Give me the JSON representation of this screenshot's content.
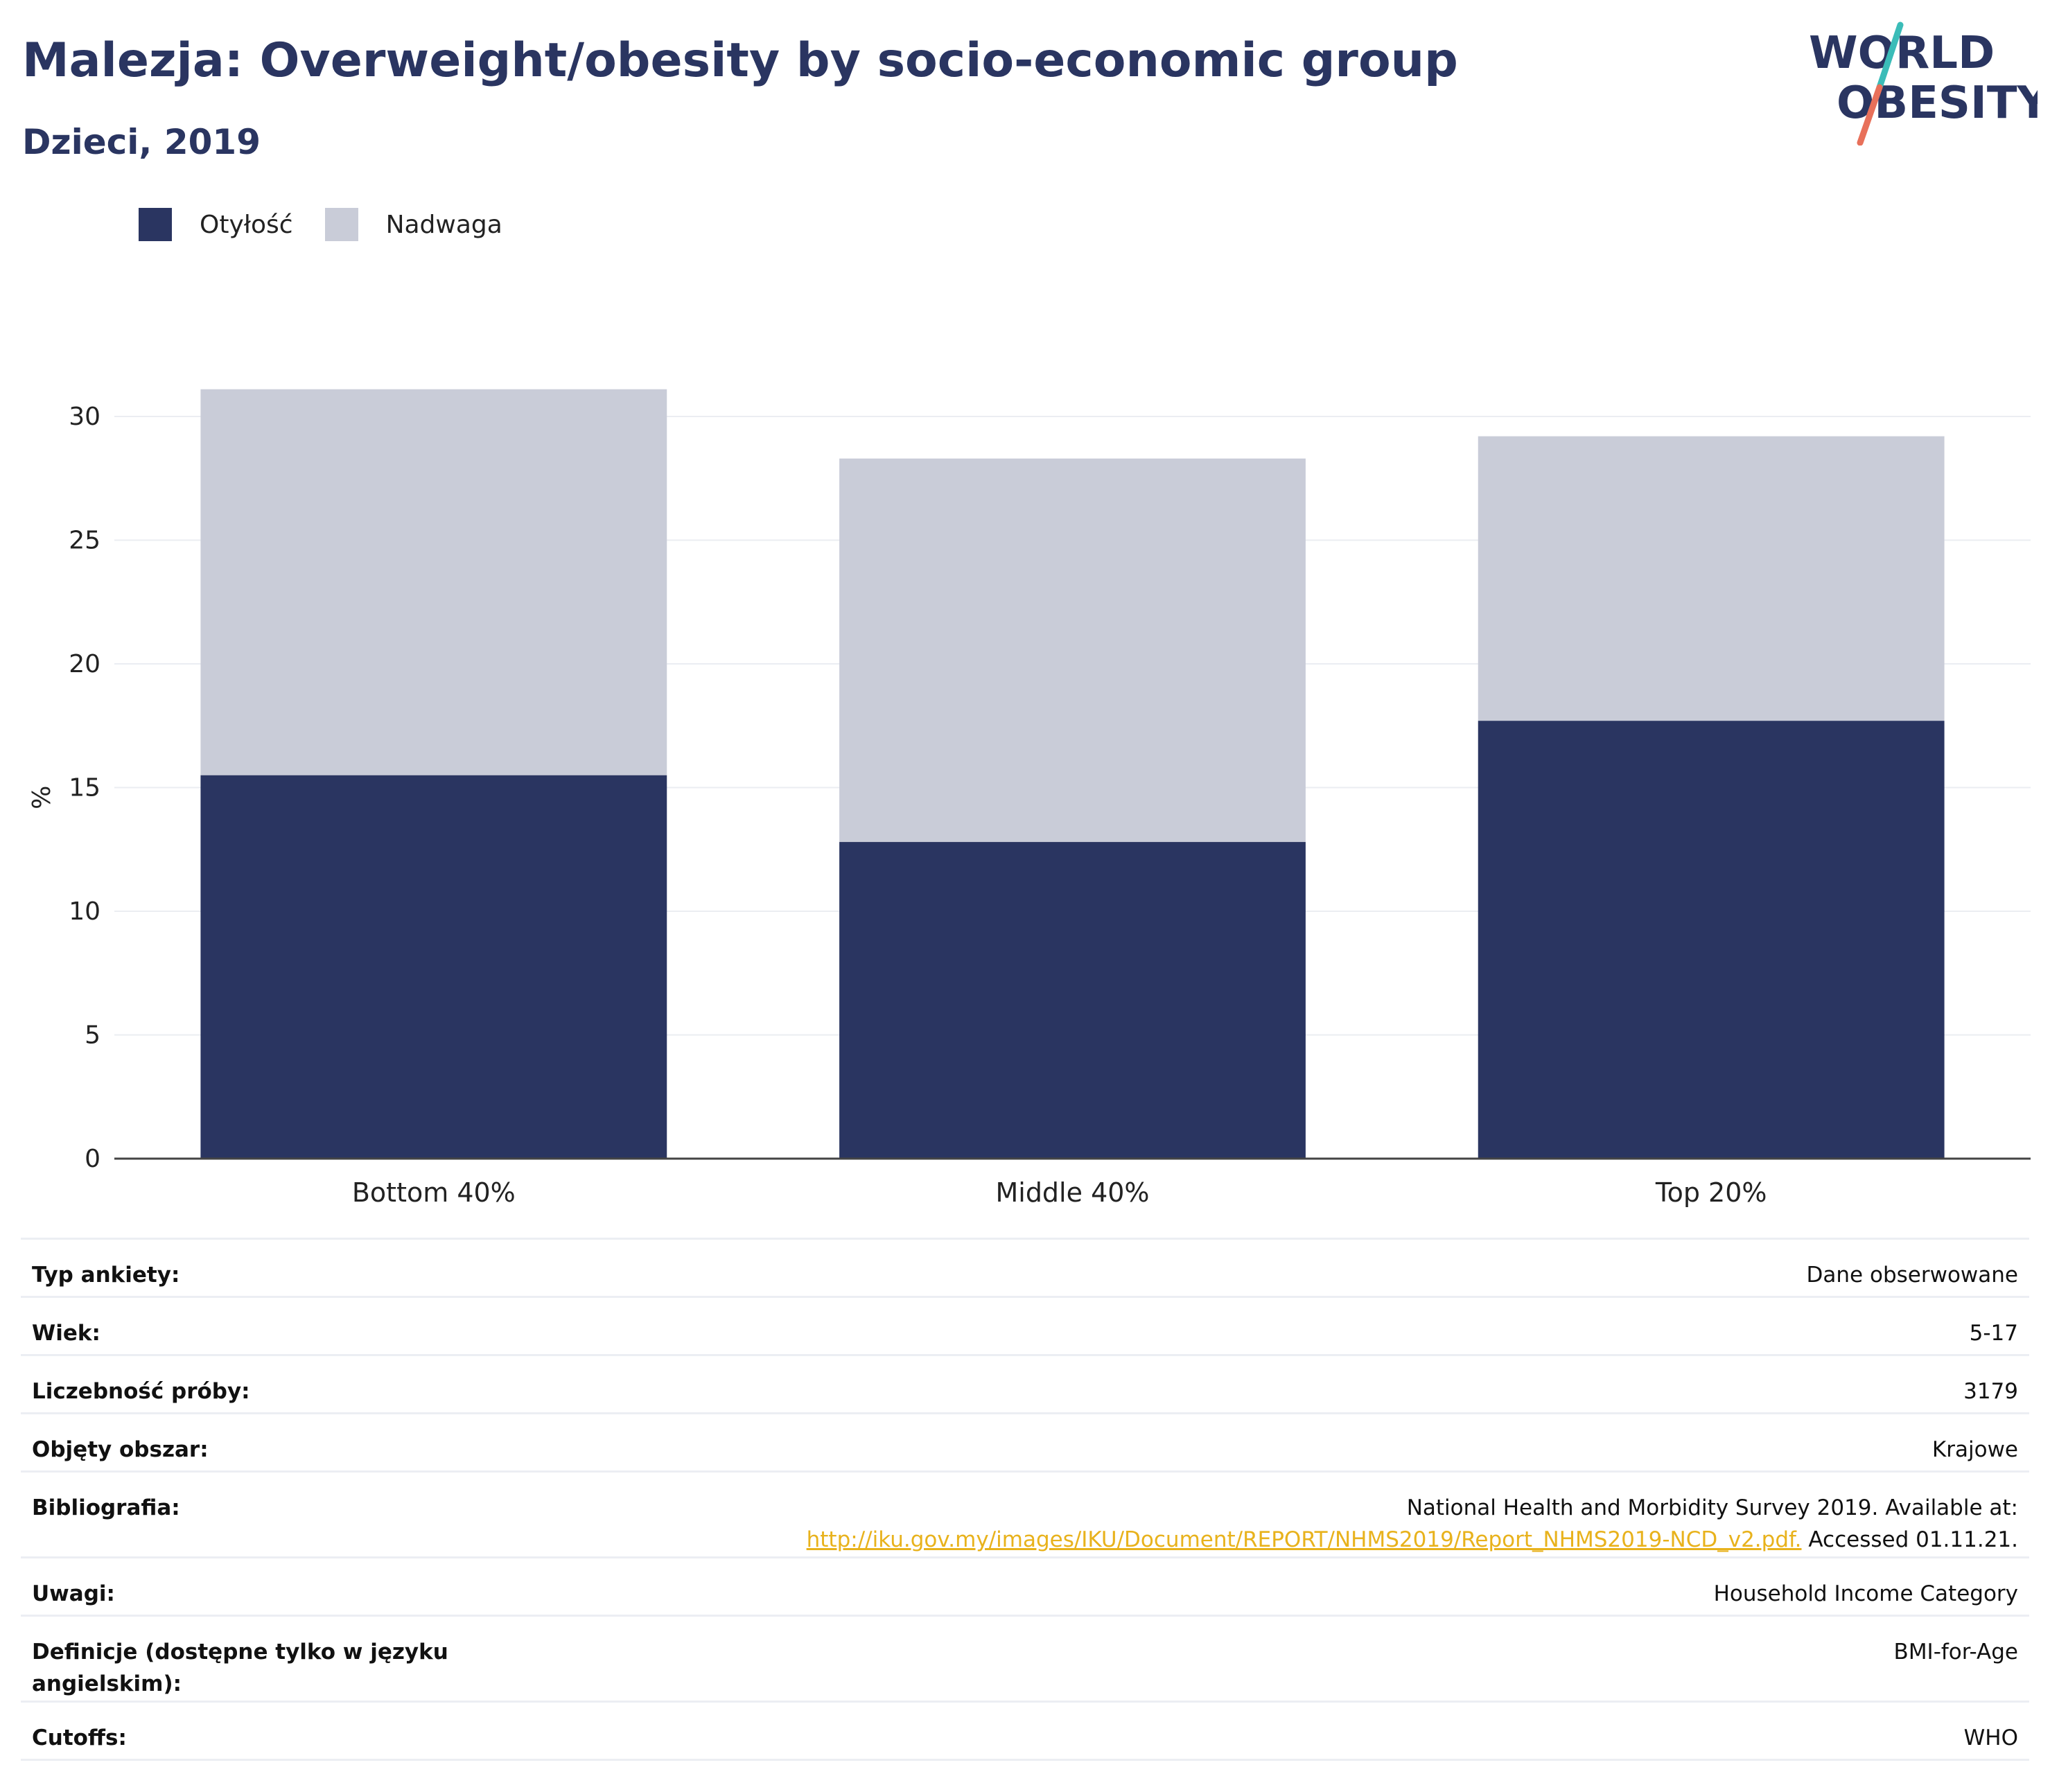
{
  "header": {
    "title": "Malezja: Overweight/obesity by socio-economic group",
    "subtitle": "Dzieci, 2019"
  },
  "logo": {
    "line1": "WORLD",
    "line2": "OBESITY",
    "text_color": "#2a3561",
    "slash_teal": "#3bbcb8",
    "slash_coral": "#e8705a"
  },
  "legend": [
    {
      "label": "Otyłość",
      "color": "#2a3561"
    },
    {
      "label": "Nadwaga",
      "color": "#c9ccd8"
    }
  ],
  "chart_data": {
    "type": "bar",
    "stacked": true,
    "categories": [
      "Bottom 40%",
      "Middle 40%",
      "Top 20%"
    ],
    "series": [
      {
        "name": "Otyłość",
        "color": "#2a3561",
        "values": [
          15.5,
          12.8,
          17.7
        ]
      },
      {
        "name": "Nadwaga",
        "color": "#c9ccd8",
        "values": [
          15.6,
          15.5,
          11.5
        ]
      }
    ],
    "ylabel": "%",
    "ylim": [
      0,
      32
    ],
    "yticks": [
      0,
      5,
      10,
      15,
      20,
      25,
      30
    ],
    "grid": true,
    "legend_position": "top-left"
  },
  "meta": {
    "rows": [
      {
        "label": "Typ ankiety:",
        "value": "Dane obserwowane"
      },
      {
        "label": "Wiek:",
        "value": "5-17"
      },
      {
        "label": "Liczebność próby:",
        "value": "3179"
      },
      {
        "label": "Objęty obszar:",
        "value": "Krajowe"
      },
      {
        "label": "Bibliografia:",
        "value": "National Health and Morbidity Survey 2019. Available at:",
        "link": "http://iku.gov.my/images/IKU/Document/REPORT/NHMS2019/Report_NHMS2019-NCD_v2.pdf.",
        "after_link": " Accessed 01.11.21."
      },
      {
        "label": "Uwagi:",
        "value": "Household Income Category"
      },
      {
        "label": "Definicje (dostępne tylko w języku angielskim):",
        "value": "BMI-for-Age"
      },
      {
        "label": "Cutoffs:",
        "value": "WHO"
      }
    ]
  }
}
